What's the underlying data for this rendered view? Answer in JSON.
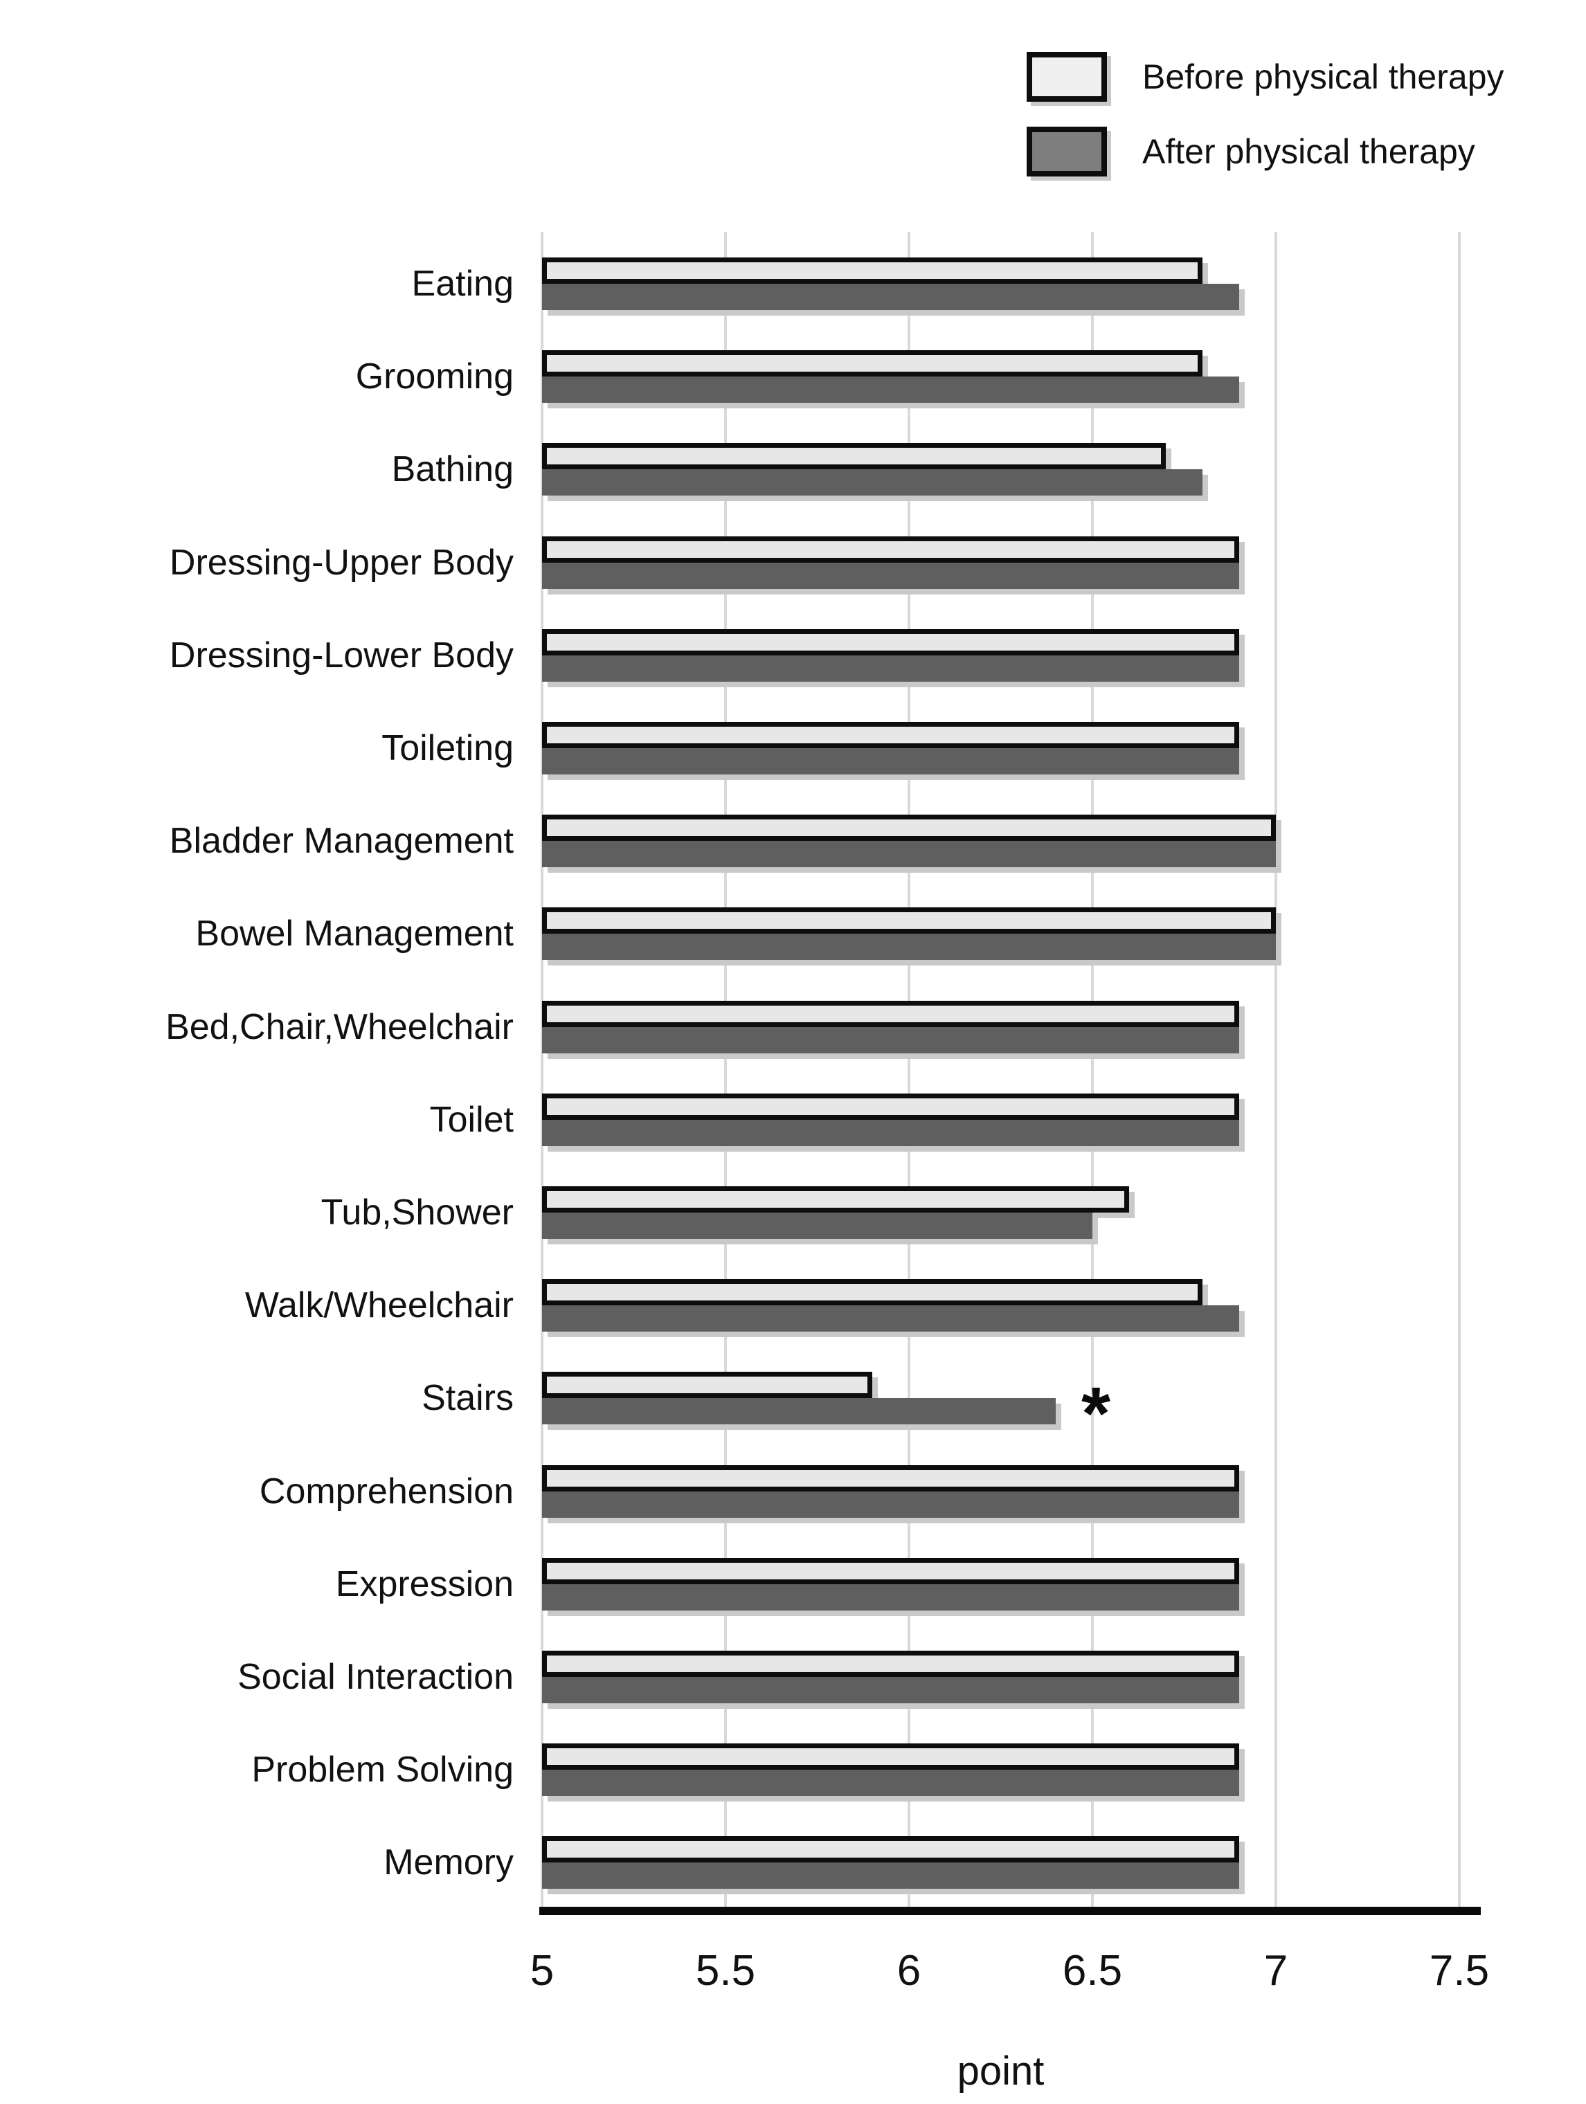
{
  "legend": {
    "items": [
      {
        "label": "Before physical therapy",
        "color": "#efefef"
      },
      {
        "label": "After physical therapy",
        "color": "#7e7e7e"
      }
    ]
  },
  "chart_data": {
    "type": "bar",
    "orientation": "horizontal",
    "title": "",
    "xlabel": "point",
    "ylabel": "",
    "xlim": [
      5,
      7.5
    ],
    "xticks": [
      "5",
      "5.5",
      "6",
      "6.5",
      "7",
      "7.5"
    ],
    "xtick_values": [
      5,
      5.5,
      6,
      6.5,
      7,
      7.5
    ],
    "grid": true,
    "legend_position": "top-right",
    "categories": [
      "Eating",
      "Grooming",
      "Bathing",
      "Dressing-Upper Body",
      "Dressing-Lower Body",
      "Toileting",
      "Bladder Management",
      "Bowel Management",
      "Bed,Chair,Wheelchair",
      "Toilet",
      "Tub,Shower",
      "Walk/Wheelchair",
      "Stairs",
      "Comprehension",
      "Expression",
      "Social Interaction",
      "Problem Solving",
      "Memory"
    ],
    "series": [
      {
        "name": "Before physical therapy",
        "values": [
          6.8,
          6.8,
          6.7,
          6.9,
          6.9,
          6.9,
          7.0,
          7.0,
          6.9,
          6.9,
          6.6,
          6.8,
          5.9,
          6.9,
          6.9,
          6.9,
          6.9,
          6.9
        ]
      },
      {
        "name": "After physical therapy",
        "values": [
          6.9,
          6.9,
          6.8,
          6.9,
          6.9,
          6.9,
          7.0,
          7.0,
          6.9,
          6.9,
          6.5,
          6.9,
          6.4,
          6.9,
          6.9,
          6.9,
          6.9,
          6.9
        ]
      }
    ],
    "annotations": [
      {
        "text": "*",
        "category": "Stairs",
        "series": "After physical therapy"
      }
    ]
  },
  "colors": {
    "before_fill": "#e7e7e7",
    "before_border": "#0d0d0d",
    "after_fill": "#5f5f5f",
    "legend_after_fill": "#7e7e7e",
    "legend_before_fill": "#efefef",
    "gridline": "#d9d9d9",
    "axis_line": "#0a0a0a",
    "shadow": "#c9c9c9",
    "text": "#111111"
  }
}
